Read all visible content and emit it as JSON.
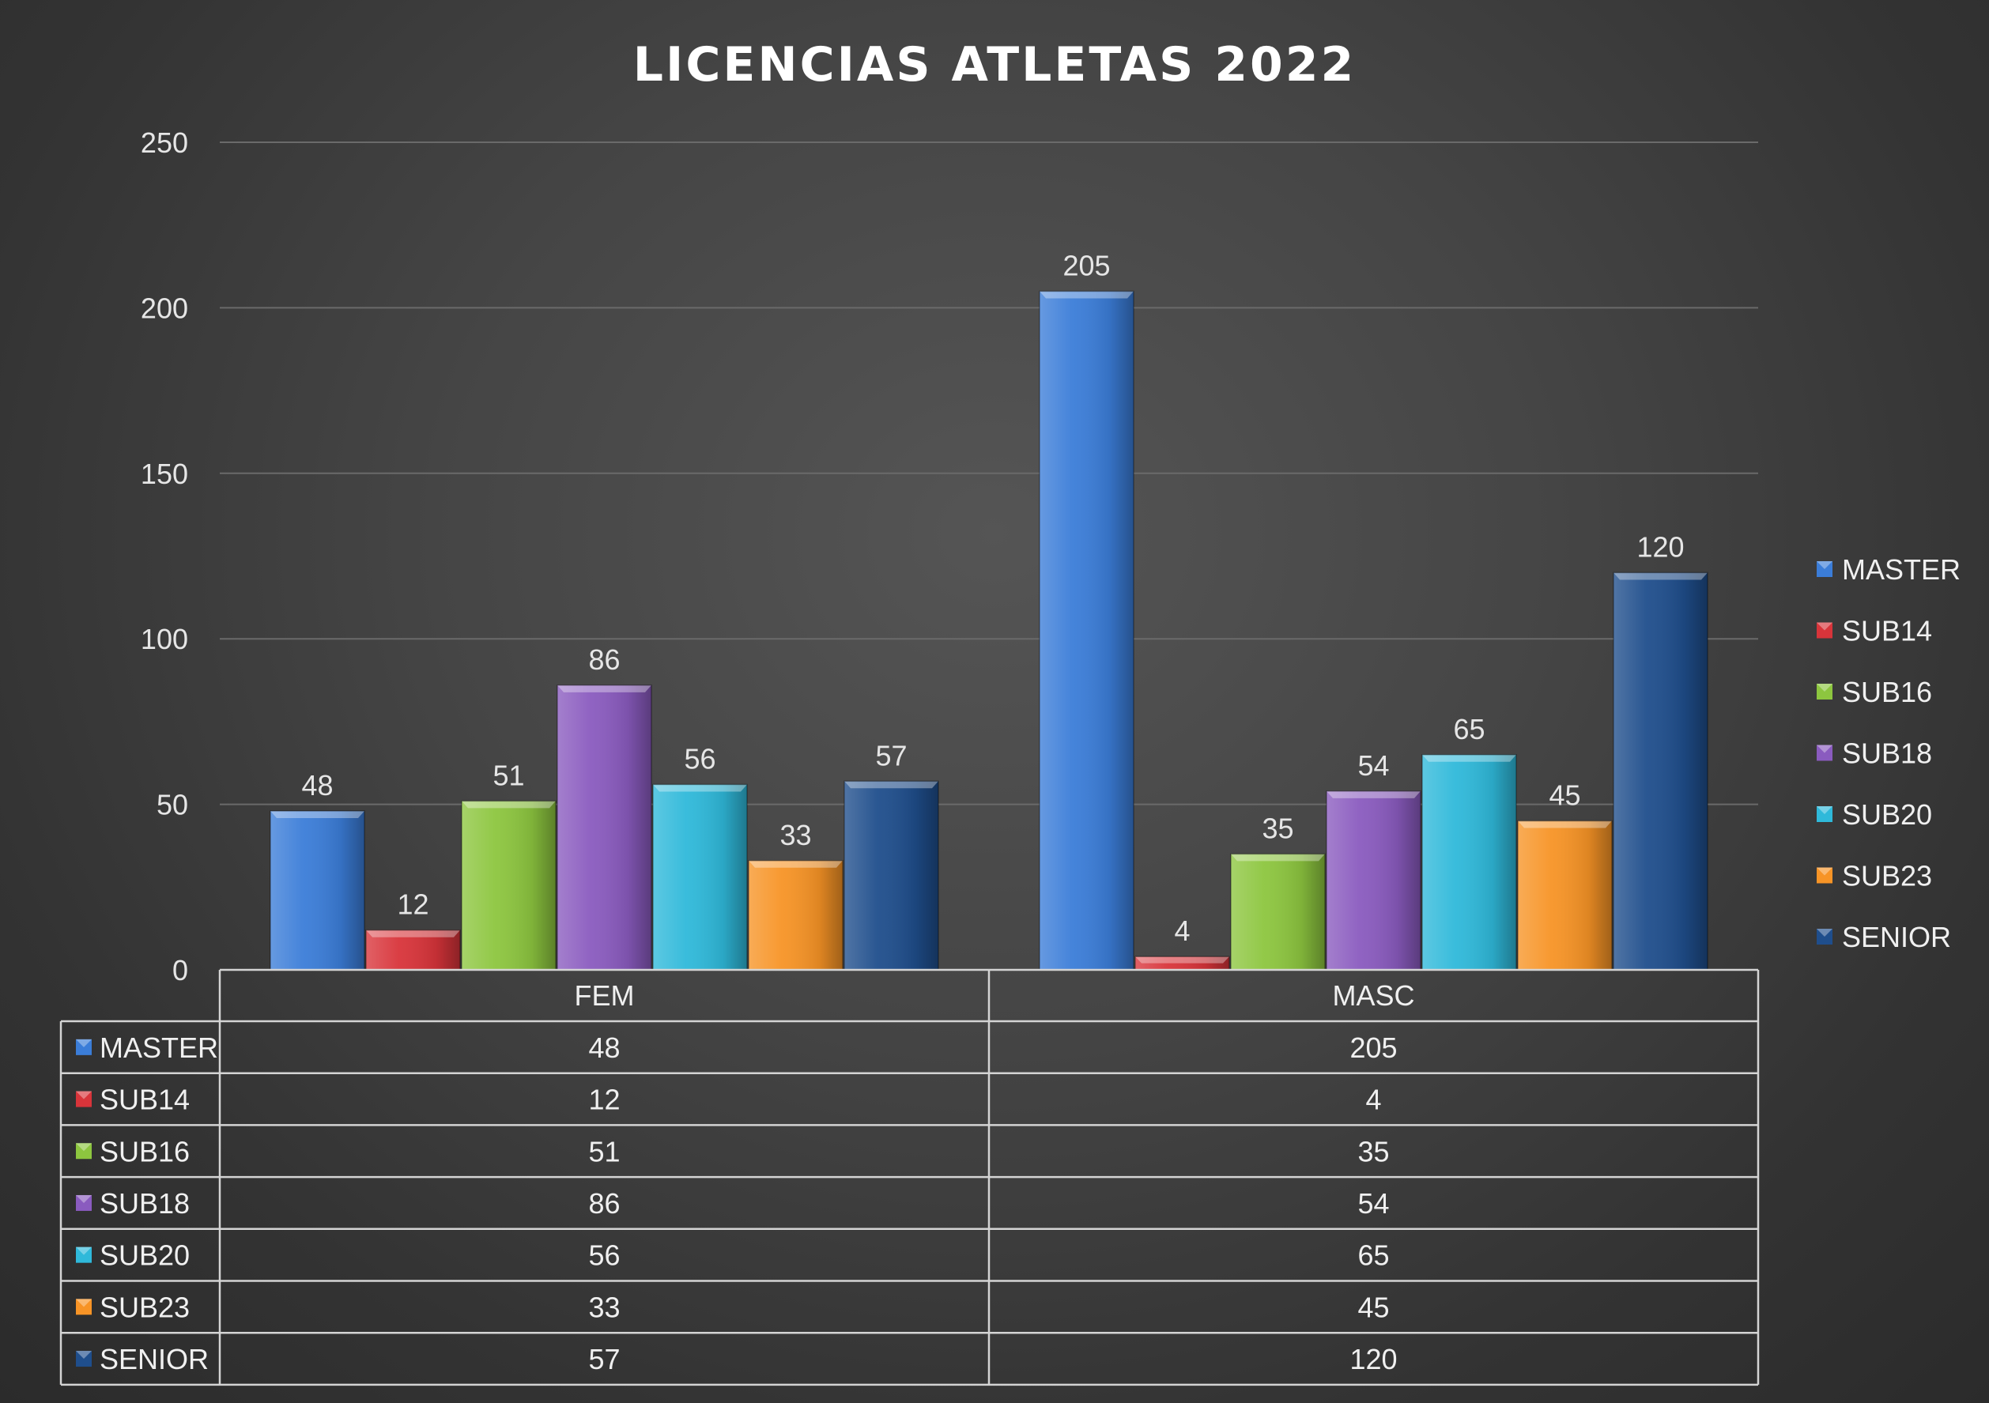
{
  "chart_data": {
    "type": "bar",
    "title": "LICENCIAS ATLETAS 2022",
    "categories": [
      "FEM",
      "MASC"
    ],
    "series": [
      {
        "name": "MASTER",
        "values": [
          48,
          205
        ],
        "color": "#3b7dd8"
      },
      {
        "name": "SUB14",
        "values": [
          12,
          4
        ],
        "color": "#d8343a"
      },
      {
        "name": "SUB16",
        "values": [
          51,
          35
        ],
        "color": "#8dc63f"
      },
      {
        "name": "SUB18",
        "values": [
          86,
          54
        ],
        "color": "#8a5bbf"
      },
      {
        "name": "SUB20",
        "values": [
          56,
          65
        ],
        "color": "#2fb9da"
      },
      {
        "name": "SUB23",
        "values": [
          33,
          45
        ],
        "color": "#f79426"
      },
      {
        "name": "SENIOR",
        "values": [
          57,
          120
        ],
        "color": "#1f4e8c"
      }
    ],
    "ylim": [
      0,
      250
    ],
    "yticks": [
      0,
      50,
      100,
      150,
      200,
      250
    ],
    "grid": true,
    "legend": "right",
    "data_table": true
  }
}
